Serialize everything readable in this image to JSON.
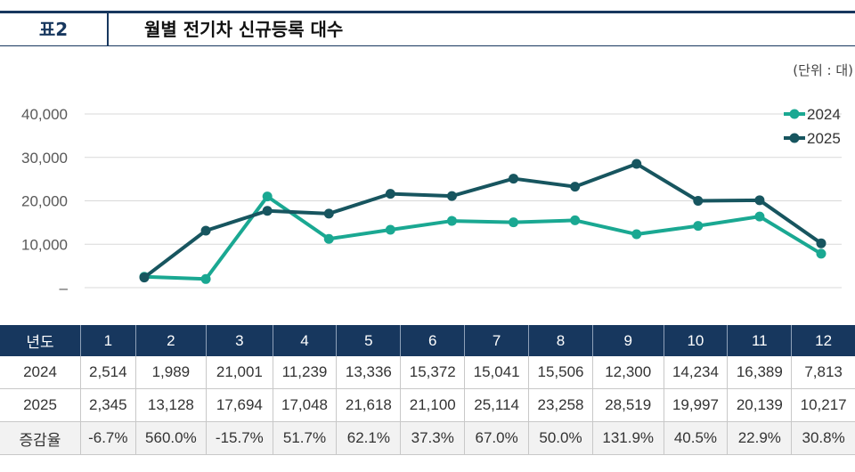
{
  "header": {
    "label": "표2",
    "title": "월별 전기차 신규등록 대수"
  },
  "unit_note": "(단위 : 대)",
  "chart_data": {
    "type": "line",
    "x": [
      1,
      2,
      3,
      4,
      5,
      6,
      7,
      8,
      9,
      10,
      11,
      12
    ],
    "series": [
      {
        "name": "2024",
        "color": "#1aa892",
        "values": [
          2514,
          1989,
          21001,
          11239,
          13336,
          15372,
          15041,
          15506,
          12300,
          14234,
          16389,
          7813
        ]
      },
      {
        "name": "2025",
        "color": "#17555f",
        "values": [
          2345,
          13128,
          17694,
          17048,
          21618,
          21100,
          25114,
          23258,
          28519,
          19997,
          20139,
          10217
        ]
      }
    ],
    "y_ticks": [
      "–",
      "10,000",
      "20,000",
      "30,000",
      "40,000"
    ],
    "ylim": [
      0,
      40000
    ],
    "grid": true,
    "legend": "top-right"
  },
  "table": {
    "header": [
      "년도",
      "1",
      "2",
      "3",
      "4",
      "5",
      "6",
      "7",
      "8",
      "9",
      "10",
      "11",
      "12"
    ],
    "rows": [
      [
        "2024",
        "2,514",
        "1,989",
        "21,001",
        "11,239",
        "13,336",
        "15,372",
        "15,041",
        "15,506",
        "12,300",
        "14,234",
        "16,389",
        "7,813"
      ],
      [
        "2025",
        "2,345",
        "13,128",
        "17,694",
        "17,048",
        "21,618",
        "21,100",
        "25,114",
        "23,258",
        "28,519",
        "19,997",
        "20,139",
        "10,217"
      ]
    ],
    "rate_row": [
      "증감율",
      "-6.7%",
      "560.0%",
      "-15.7%",
      "51.7%",
      "62.1%",
      "37.3%",
      "67.0%",
      "50.0%",
      "131.9%",
      "40.5%",
      "22.9%",
      "30.8%"
    ]
  }
}
